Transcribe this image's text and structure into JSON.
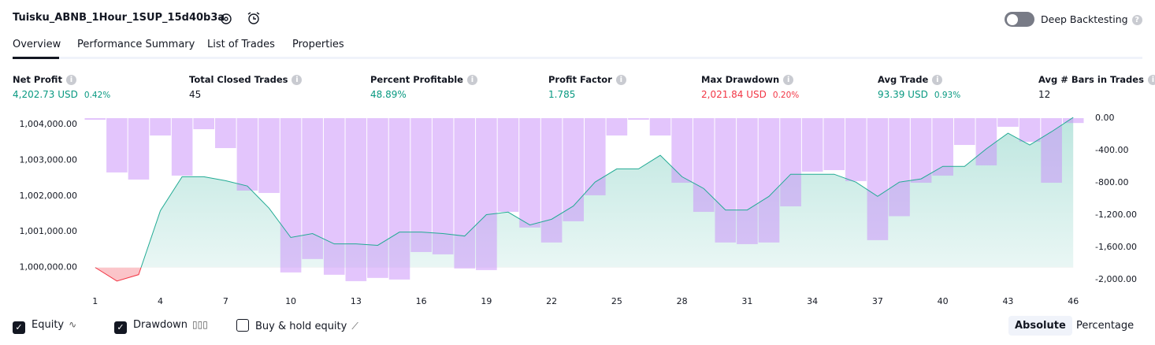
{
  "header": {
    "title": "Tuisku_ABNB_1Hour_1SUP_15d40b3a",
    "deep_backtesting": "Deep Backtesting"
  },
  "tabs": {
    "items": [
      "Overview",
      "Performance Summary",
      "List of Trades",
      "Properties"
    ],
    "active": 0
  },
  "metrics": [
    {
      "label": "Net Profit",
      "value": "4,202.73 USD",
      "percent": "0.42%",
      "color": "#089981"
    },
    {
      "label": "Total Closed Trades",
      "value": "45",
      "color": "#131722"
    },
    {
      "label": "Percent Profitable",
      "value": "48.89%",
      "color": "#089981"
    },
    {
      "label": "Profit Factor",
      "value": "1.785",
      "color": "#089981"
    },
    {
      "label": "Max Drawdown",
      "value": "2,021.84 USD",
      "percent": "0.20%",
      "color": "#f23645"
    },
    {
      "label": "Avg Trade",
      "value": "93.39 USD",
      "percent": "0.93%",
      "color": "#089981"
    },
    {
      "label": "Avg # Bars in Trades",
      "value": "12",
      "color": "#131722"
    }
  ],
  "chart_data": {
    "type": "equity_drawdown",
    "x": [
      1,
      2,
      3,
      4,
      5,
      6,
      7,
      8,
      9,
      10,
      11,
      12,
      13,
      14,
      15,
      16,
      17,
      18,
      19,
      20,
      21,
      22,
      23,
      24,
      25,
      26,
      27,
      28,
      29,
      30,
      31,
      32,
      33,
      34,
      35,
      36,
      37,
      38,
      39,
      40,
      41,
      42,
      43,
      44,
      45,
      46
    ],
    "series": [
      {
        "name": "Equity",
        "color": "#22ab94",
        "negative_color": "#f23645",
        "axis": "y",
        "values": [
          1000000,
          999620,
          999800,
          1001590,
          1002540,
          1002540,
          1002430,
          1002280,
          1001660,
          1000840,
          1000950,
          1000660,
          1000660,
          1000620,
          1000990,
          1000990,
          1000950,
          1000880,
          1001480,
          1001550,
          1001190,
          1001350,
          1001720,
          1002390,
          1002760,
          1002760,
          1003140,
          1002540,
          1002210,
          1001610,
          1001610,
          1001990,
          1002610,
          1002610,
          1002610,
          1002390,
          1001990,
          1002390,
          1002480,
          1002830,
          1002830,
          1003320,
          1003760,
          1003430,
          1003800,
          1004200
        ]
      },
      {
        "name": "Drawdown",
        "color": "rgba(200,140,250,0.5)",
        "axis": "y2",
        "values": [
          -20,
          -673,
          -761,
          -215,
          -712,
          -137,
          -371,
          -898,
          -927,
          -1912,
          -1746,
          -1941,
          -2020,
          -1980,
          -2000,
          -1659,
          -1688,
          -1863,
          -1883,
          -1161,
          -1356,
          -1541,
          -1278,
          -956,
          -215,
          -20,
          -215,
          -800,
          -1161,
          -1541,
          -1561,
          -1541,
          -1093,
          -663,
          -644,
          -780,
          -1512,
          -1215,
          -800,
          -712,
          -332,
          -585,
          -107,
          -293,
          -800,
          -60
        ]
      }
    ],
    "xlim": [
      0.5,
      46.5
    ],
    "xticks": [
      1,
      4,
      7,
      10,
      13,
      16,
      19,
      22,
      25,
      28,
      31,
      34,
      37,
      40,
      43,
      46
    ],
    "ylim": [
      999550,
      1004180
    ],
    "yticks": [
      {
        "value": 1000000,
        "label": "1,000,000.00"
      },
      {
        "value": 1001000,
        "label": "1,001,000.00"
      },
      {
        "value": 1002000,
        "label": "1,002,000.00"
      },
      {
        "value": 1003000,
        "label": "1,003,000.00"
      },
      {
        "value": 1004000,
        "label": "1,004,000.00"
      }
    ],
    "y2lim": [
      -2050,
      0
    ],
    "y2ticks": [
      {
        "value": 0,
        "label": "0.00"
      },
      {
        "value": -400,
        "label": "-400.00"
      },
      {
        "value": -800,
        "label": "-800.00"
      },
      {
        "value": -1200,
        "label": "-1,200.00"
      },
      {
        "value": -1600,
        "label": "-1,600.00"
      },
      {
        "value": -2000,
        "label": "-2,000.00"
      }
    ]
  },
  "legend": {
    "equity_checked": true,
    "drawdown_checked": true,
    "buy_hold": "Buy & hold equity",
    "buy_hold_checked": false
  },
  "view": {
    "buttons": [
      "Absolute",
      "Percentage"
    ],
    "active": 0
  }
}
